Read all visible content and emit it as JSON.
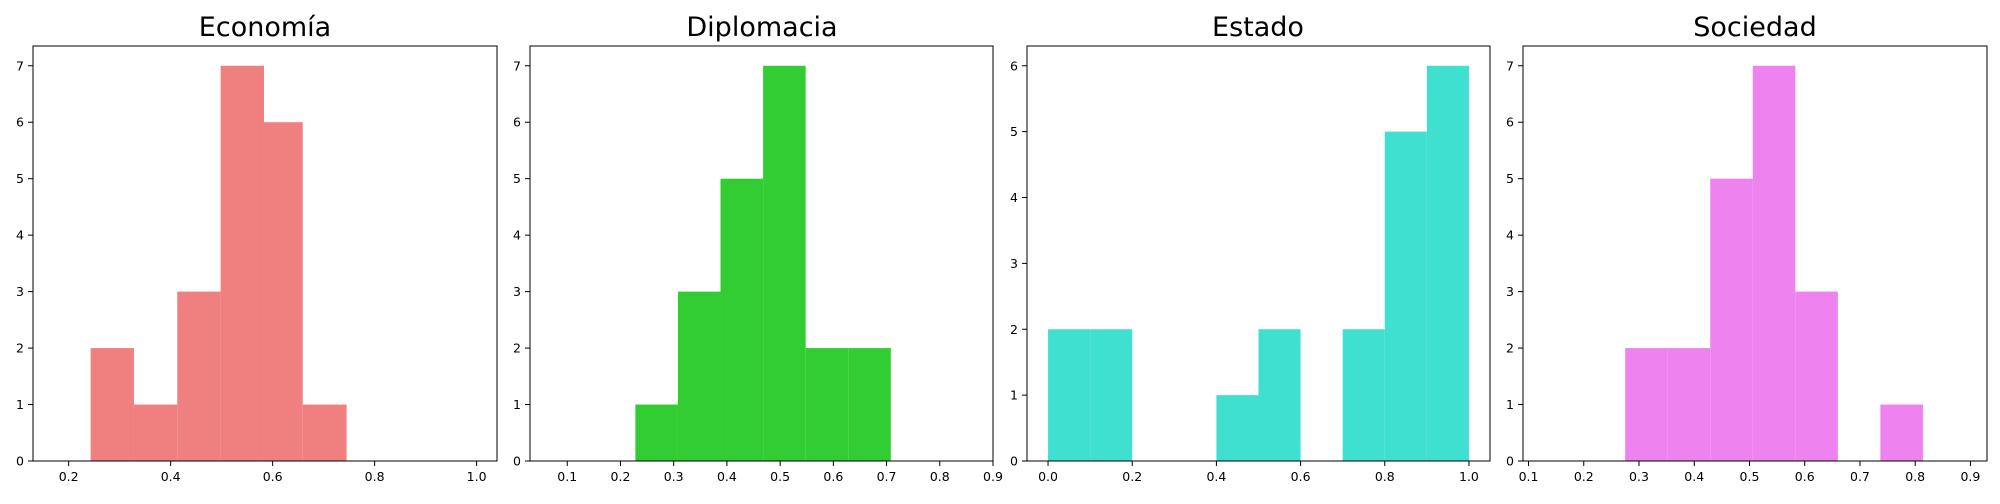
{
  "chart_data": [
    {
      "type": "bar",
      "title": "Economía",
      "color": "#f08080",
      "xlim": [
        0.13,
        1.04
      ],
      "ylim": [
        0,
        7.35
      ],
      "xticks": [
        0.2,
        0.4,
        0.6,
        0.8,
        1.0
      ],
      "xtick_labels": [
        "0.2",
        "0.4",
        "0.6",
        "0.8",
        "1.0"
      ],
      "yticks": [
        0,
        1,
        2,
        3,
        4,
        5,
        6,
        7
      ],
      "ytick_labels": [
        "0",
        "1",
        "2",
        "3",
        "4",
        "5",
        "6",
        "7"
      ],
      "bins": [
        {
          "x0": 0.243,
          "x1": 0.328,
          "count": 2
        },
        {
          "x0": 0.328,
          "x1": 0.413,
          "count": 1
        },
        {
          "x0": 0.413,
          "x1": 0.498,
          "count": 3
        },
        {
          "x0": 0.498,
          "x1": 0.583,
          "count": 7
        },
        {
          "x0": 0.583,
          "x1": 0.659,
          "count": 6
        },
        {
          "x0": 0.659,
          "x1": 0.745,
          "count": 1
        }
      ]
    },
    {
      "type": "bar",
      "title": "Diplomacia",
      "color": "#32cd32",
      "xlim": [
        0.03,
        0.9
      ],
      "ylim": [
        0,
        7.35
      ],
      "xticks": [
        0.1,
        0.2,
        0.3,
        0.4,
        0.5,
        0.6,
        0.7,
        0.8,
        0.9
      ],
      "xtick_labels": [
        "0.1",
        "0.2",
        "0.3",
        "0.4",
        "0.5",
        "0.6",
        "0.7",
        "0.8",
        "0.9"
      ],
      "yticks": [
        0,
        1,
        2,
        3,
        4,
        5,
        6,
        7
      ],
      "ytick_labels": [
        "0",
        "1",
        "2",
        "3",
        "4",
        "5",
        "6",
        "7"
      ],
      "bins": [
        {
          "x0": 0.228,
          "x1": 0.308,
          "count": 1
        },
        {
          "x0": 0.308,
          "x1": 0.388,
          "count": 3
        },
        {
          "x0": 0.388,
          "x1": 0.468,
          "count": 5
        },
        {
          "x0": 0.468,
          "x1": 0.548,
          "count": 7
        },
        {
          "x0": 0.548,
          "x1": 0.628,
          "count": 2
        },
        {
          "x0": 0.628,
          "x1": 0.708,
          "count": 2
        }
      ]
    },
    {
      "type": "bar",
      "title": "Estado",
      "color": "#40e0d0",
      "xlim": [
        -0.05,
        1.05
      ],
      "ylim": [
        0,
        6.3
      ],
      "xticks": [
        0.0,
        0.2,
        0.4,
        0.6,
        0.8,
        1.0
      ],
      "xtick_labels": [
        "0.0",
        "0.2",
        "0.4",
        "0.6",
        "0.8",
        "1.0"
      ],
      "yticks": [
        0,
        1,
        2,
        3,
        4,
        5,
        6
      ],
      "ytick_labels": [
        "0",
        "1",
        "2",
        "3",
        "4",
        "5",
        "6"
      ],
      "bins": [
        {
          "x0": 0.0,
          "x1": 0.1,
          "count": 2
        },
        {
          "x0": 0.1,
          "x1": 0.2,
          "count": 2
        },
        {
          "x0": 0.4,
          "x1": 0.5,
          "count": 1
        },
        {
          "x0": 0.5,
          "x1": 0.6,
          "count": 2
        },
        {
          "x0": 0.7,
          "x1": 0.8,
          "count": 2
        },
        {
          "x0": 0.8,
          "x1": 0.9,
          "count": 5
        },
        {
          "x0": 0.9,
          "x1": 1.0,
          "count": 6
        }
      ]
    },
    {
      "type": "bar",
      "title": "Sociedad",
      "color": "#ee82ee",
      "xlim": [
        0.09,
        0.93
      ],
      "ylim": [
        0,
        7.35
      ],
      "xticks": [
        0.1,
        0.2,
        0.3,
        0.4,
        0.5,
        0.6,
        0.7,
        0.8,
        0.9
      ],
      "xtick_labels": [
        "0.1",
        "0.2",
        "0.3",
        "0.4",
        "0.5",
        "0.6",
        "0.7",
        "0.8",
        "0.9"
      ],
      "yticks": [
        0,
        1,
        2,
        3,
        4,
        5,
        6,
        7
      ],
      "ytick_labels": [
        "0",
        "1",
        "2",
        "3",
        "4",
        "5",
        "6",
        "7"
      ],
      "bins": [
        {
          "x0": 0.275,
          "x1": 0.352,
          "count": 2
        },
        {
          "x0": 0.352,
          "x1": 0.429,
          "count": 2
        },
        {
          "x0": 0.429,
          "x1": 0.506,
          "count": 5
        },
        {
          "x0": 0.506,
          "x1": 0.583,
          "count": 7
        },
        {
          "x0": 0.583,
          "x1": 0.66,
          "count": 3
        },
        {
          "x0": 0.737,
          "x1": 0.814,
          "count": 1
        }
      ]
    }
  ]
}
